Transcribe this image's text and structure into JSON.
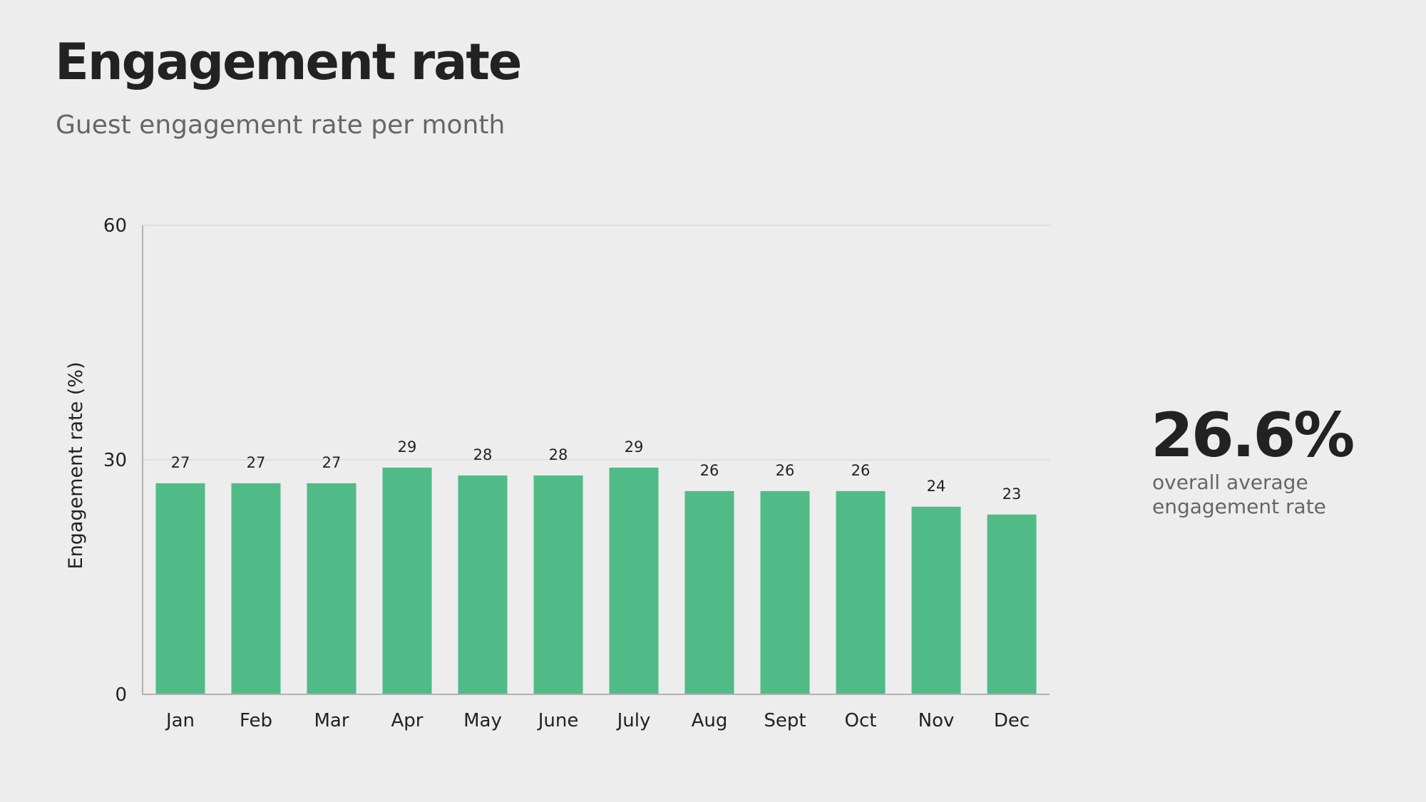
{
  "header": {
    "title": "Engagement rate",
    "subtitle": "Guest engagement rate per month"
  },
  "kpi": {
    "value": "26.6%",
    "label": "overall average engagement rate"
  },
  "colors": {
    "bar": "#50bb87",
    "text": "#222222",
    "muted": "#666666",
    "grid": "#d9d9d9",
    "axis": "#b3b3b3"
  },
  "chart_data": {
    "type": "bar",
    "categories": [
      "Jan",
      "Feb",
      "Mar",
      "Apr",
      "May",
      "June",
      "July",
      "Aug",
      "Sept",
      "Oct",
      "Nov",
      "Dec"
    ],
    "values": [
      27,
      27,
      27,
      29,
      28,
      28,
      29,
      26,
      26,
      26,
      24,
      23
    ],
    "ylabel": "Engagement rate (%)",
    "ylim": [
      0,
      60
    ],
    "yticks": [
      0,
      30,
      60
    ],
    "grid": true,
    "data_labels": true
  }
}
